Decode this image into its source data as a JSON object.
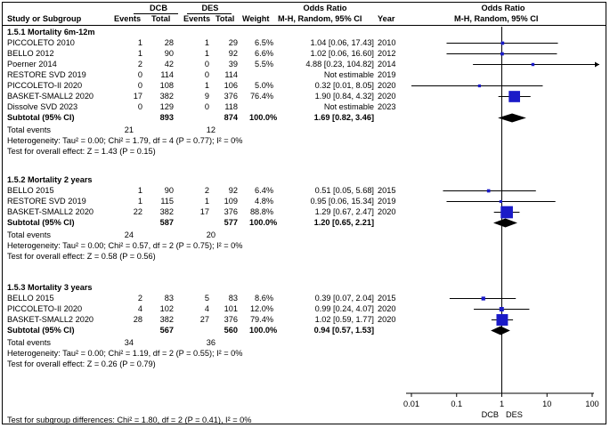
{
  "header": {
    "group_dcb": "DCB",
    "group_des": "DES",
    "or_title_left": "Odds Ratio",
    "or_title_right": "Odds Ratio",
    "col_study": "Study or Subgroup",
    "col_events": "Events",
    "col_total": "Total",
    "col_weight": "Weight",
    "col_method_left": "M-H, Random, 95% CI",
    "col_year": "Year",
    "col_method_right": "M-H, Random, 95% CI"
  },
  "subgroups": [
    {
      "title": "1.5.1 Mortality 6m-12m",
      "studies": [
        {
          "name": "PICCOLETO 2010",
          "dcb_events": "1",
          "dcb_total": "28",
          "des_events": "1",
          "des_total": "29",
          "weight": "6.5%",
          "or_text": "1.04 [0.06, 17.43]",
          "year": "2010"
        },
        {
          "name": "BELLO 2012",
          "dcb_events": "1",
          "dcb_total": "90",
          "des_events": "1",
          "des_total": "92",
          "weight": "6.6%",
          "or_text": "1.02 [0.06, 16.60]",
          "year": "2012"
        },
        {
          "name": "Poerner 2014",
          "dcb_events": "2",
          "dcb_total": "42",
          "des_events": "0",
          "des_total": "39",
          "weight": "5.5%",
          "or_text": "4.88 [0.23, 104.82]",
          "year": "2014"
        },
        {
          "name": "RESTORE SVD 2019",
          "dcb_events": "0",
          "dcb_total": "114",
          "des_events": "0",
          "des_total": "114",
          "weight": "",
          "or_text": "Not estimable",
          "year": "2019"
        },
        {
          "name": "PICCOLETO-II 2020",
          "dcb_events": "0",
          "dcb_total": "108",
          "des_events": "1",
          "des_total": "106",
          "weight": "5.0%",
          "or_text": "0.32 [0.01, 8.05]",
          "year": "2020"
        },
        {
          "name": "BASKET-SMALL2 2020",
          "dcb_events": "17",
          "dcb_total": "382",
          "des_events": "9",
          "des_total": "376",
          "weight": "76.4%",
          "or_text": "1.90 [0.84, 4.32]",
          "year": "2020"
        },
        {
          "name": "Dissolve SVD 2023",
          "dcb_events": "0",
          "dcb_total": "129",
          "des_events": "0",
          "des_total": "118",
          "weight": "",
          "or_text": "Not estimable",
          "year": "2023"
        }
      ],
      "subtotal": {
        "label": "Subtotal (95% CI)",
        "dcb_total": "893",
        "des_total": "874",
        "weight": "100.0%",
        "or_text": "1.69 [0.82, 3.46]"
      },
      "total_events": {
        "label": "Total events",
        "dcb": "21",
        "des": "12"
      },
      "heterogeneity": "Heterogeneity: Tau² = 0.00; Chi² = 1.79, df = 4 (P = 0.77); I² = 0%",
      "overall": "Test for overall effect: Z = 1.43 (P = 0.15)"
    },
    {
      "title": "1.5.2 Mortality 2 years",
      "studies": [
        {
          "name": "BELLO 2015",
          "dcb_events": "1",
          "dcb_total": "90",
          "des_events": "2",
          "des_total": "92",
          "weight": "6.4%",
          "or_text": "0.51 [0.05, 5.68]",
          "year": "2015"
        },
        {
          "name": "RESTORE SVD 2019",
          "dcb_events": "1",
          "dcb_total": "115",
          "des_events": "1",
          "des_total": "109",
          "weight": "4.8%",
          "or_text": "0.95 [0.06, 15.34]",
          "year": "2019"
        },
        {
          "name": "BASKET-SMALL2 2020",
          "dcb_events": "22",
          "dcb_total": "382",
          "des_events": "17",
          "des_total": "376",
          "weight": "88.8%",
          "or_text": "1.29 [0.67, 2.47]",
          "year": "2020"
        }
      ],
      "subtotal": {
        "label": "Subtotal (95% CI)",
        "dcb_total": "587",
        "des_total": "577",
        "weight": "100.0%",
        "or_text": "1.20 [0.65, 2.21]"
      },
      "total_events": {
        "label": "Total events",
        "dcb": "24",
        "des": "20"
      },
      "heterogeneity": "Heterogeneity: Tau² = 0.00; Chi² = 0.57, df = 2 (P = 0.75); I² = 0%",
      "overall": "Test for overall effect: Z = 0.58 (P = 0.56)"
    },
    {
      "title": "1.5.3 Mortality 3 years",
      "studies": [
        {
          "name": "BELLO 2015",
          "dcb_events": "2",
          "dcb_total": "83",
          "des_events": "5",
          "des_total": "83",
          "weight": "8.6%",
          "or_text": "0.39 [0.07, 2.04]",
          "year": "2015"
        },
        {
          "name": "PICCOLETO-II 2020",
          "dcb_events": "4",
          "dcb_total": "102",
          "des_events": "4",
          "des_total": "101",
          "weight": "12.0%",
          "or_text": "0.99 [0.24, 4.07]",
          "year": "2020"
        },
        {
          "name": "BASKET-SMALL2 2020",
          "dcb_events": "28",
          "dcb_total": "382",
          "des_events": "27",
          "des_total": "376",
          "weight": "79.4%",
          "or_text": "1.02 [0.59, 1.77]",
          "year": "2020"
        }
      ],
      "subtotal": {
        "label": "Subtotal (95% CI)",
        "dcb_total": "567",
        "des_total": "560",
        "weight": "100.0%",
        "or_text": "0.94 [0.57, 1.53]"
      },
      "total_events": {
        "label": "Total events",
        "dcb": "34",
        "des": "36"
      },
      "heterogeneity": "Heterogeneity: Tau² = 0.00; Chi² = 1.19, df = 2 (P = 0.55); I² = 0%",
      "overall": "Test for overall effect: Z = 0.26 (P = 0.79)"
    }
  ],
  "subgroup_differences": "Test for subgroup differences: Chi² = 1.80, df = 2 (P = 0.41), I² = 0%",
  "axis": {
    "ticks": [
      "0.01",
      "0.1",
      "1",
      "10",
      "100"
    ],
    "favours_left": "DCB",
    "favours_right": "DES"
  },
  "colors": {
    "marker": "#1a1ac8",
    "line": "#000000"
  },
  "chart_data": {
    "type": "forest",
    "title": "Odds Ratio M-H, Random, 95% CI",
    "scale": "log",
    "xlim": [
      0.01,
      100
    ],
    "null_line": 1,
    "xlabel_left": "DCB",
    "xlabel_right": "DES",
    "series": [
      {
        "name": "1.5.1 Mortality 6m-12m",
        "studies": [
          {
            "label": "PICCOLETO 2010",
            "or": 1.04,
            "lo": 0.06,
            "hi": 17.43,
            "weight": 6.5
          },
          {
            "label": "BELLO 2012",
            "or": 1.02,
            "lo": 0.06,
            "hi": 16.6,
            "weight": 6.6
          },
          {
            "label": "Poerner 2014",
            "or": 4.88,
            "lo": 0.23,
            "hi": 104.82,
            "weight": 5.5
          },
          {
            "label": "RESTORE SVD 2019",
            "or": null,
            "lo": null,
            "hi": null,
            "weight": 0
          },
          {
            "label": "PICCOLETO-II 2020",
            "or": 0.32,
            "lo": 0.01,
            "hi": 8.05,
            "weight": 5.0
          },
          {
            "label": "BASKET-SMALL2 2020",
            "or": 1.9,
            "lo": 0.84,
            "hi": 4.32,
            "weight": 76.4
          },
          {
            "label": "Dissolve SVD 2023",
            "or": null,
            "lo": null,
            "hi": null,
            "weight": 0
          }
        ],
        "pooled": {
          "or": 1.69,
          "lo": 0.82,
          "hi": 3.46
        }
      },
      {
        "name": "1.5.2 Mortality 2 years",
        "studies": [
          {
            "label": "BELLO 2015",
            "or": 0.51,
            "lo": 0.05,
            "hi": 5.68,
            "weight": 6.4
          },
          {
            "label": "RESTORE SVD 2019",
            "or": 0.95,
            "lo": 0.06,
            "hi": 15.34,
            "weight": 4.8
          },
          {
            "label": "BASKET-SMALL2 2020",
            "or": 1.29,
            "lo": 0.67,
            "hi": 2.47,
            "weight": 88.8
          }
        ],
        "pooled": {
          "or": 1.2,
          "lo": 0.65,
          "hi": 2.21
        }
      },
      {
        "name": "1.5.3 Mortality 3 years",
        "studies": [
          {
            "label": "BELLO 2015",
            "or": 0.39,
            "lo": 0.07,
            "hi": 2.04,
            "weight": 8.6
          },
          {
            "label": "PICCOLETO-II 2020",
            "or": 0.99,
            "lo": 0.24,
            "hi": 4.07,
            "weight": 12.0
          },
          {
            "label": "BASKET-SMALL2 2020",
            "or": 1.02,
            "lo": 0.59,
            "hi": 1.77,
            "weight": 79.4
          }
        ],
        "pooled": {
          "or": 0.94,
          "lo": 0.57,
          "hi": 1.53
        }
      }
    ]
  }
}
